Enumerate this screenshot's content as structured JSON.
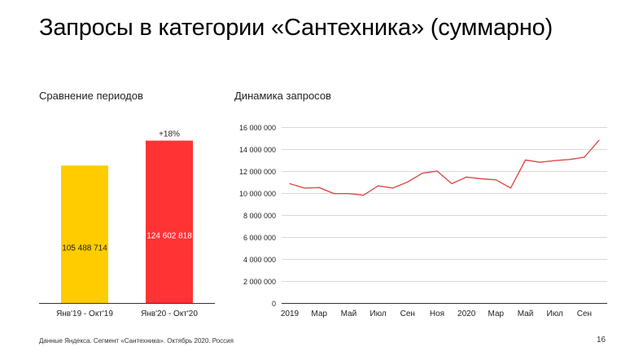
{
  "page": {
    "title": "Запросы в категории «Сантехника» (суммарно)",
    "footer": "Данные Яндекса. Сегмент «Сантехника». Октябрь 2020. Россия",
    "page_number": "16"
  },
  "chart_data": [
    {
      "type": "bar",
      "title": "Сравнение периодов",
      "categories": [
        "Янв'19 - Окт'19",
        "Янв'20 - Окт'20"
      ],
      "values": [
        105488714,
        124602818
      ],
      "value_labels": [
        "105 488 714",
        "124 602 818"
      ],
      "colors": [
        "#ffcc00",
        "#ff3333"
      ],
      "annotation": "+18%",
      "ylim": [
        0,
        130000000
      ],
      "grid": false
    },
    {
      "type": "line",
      "title": "Динамика запросов",
      "x": [
        "2019-01",
        "2019-02",
        "2019-03",
        "2019-04",
        "2019-05",
        "2019-06",
        "2019-07",
        "2019-08",
        "2019-09",
        "2019-10",
        "2019-11",
        "2019-12",
        "2020-01",
        "2020-02",
        "2020-03",
        "2020-04",
        "2020-05",
        "2020-06",
        "2020-07",
        "2020-08",
        "2020-09",
        "2020-10"
      ],
      "x_tick_labels": [
        "2019",
        "Мар",
        "Май",
        "Июл",
        "Сен",
        "Ноя",
        "2020",
        "Мар",
        "Май",
        "Июл",
        "Сен"
      ],
      "y_ticks": [
        0,
        2000000,
        4000000,
        6000000,
        8000000,
        10000000,
        12000000,
        14000000,
        16000000
      ],
      "y_tick_labels": [
        "0",
        "2 000 000",
        "4 000 000",
        "6 000 000",
        "8 000 000",
        "10 000 000",
        "12 000 000",
        "14 000 000",
        "16 000 000"
      ],
      "ylim": [
        0,
        16000000
      ],
      "series": [
        {
          "color": "#e04a4a",
          "values": [
            10850000,
            10450000,
            10500000,
            9950000,
            9950000,
            9800000,
            10650000,
            10450000,
            11000000,
            11800000,
            12000000,
            10850000,
            11450000,
            11300000,
            11200000,
            10450000,
            13000000,
            12800000,
            12950000,
            13050000,
            13250000,
            14800000
          ]
        }
      ],
      "grid": "horizontal"
    }
  ]
}
